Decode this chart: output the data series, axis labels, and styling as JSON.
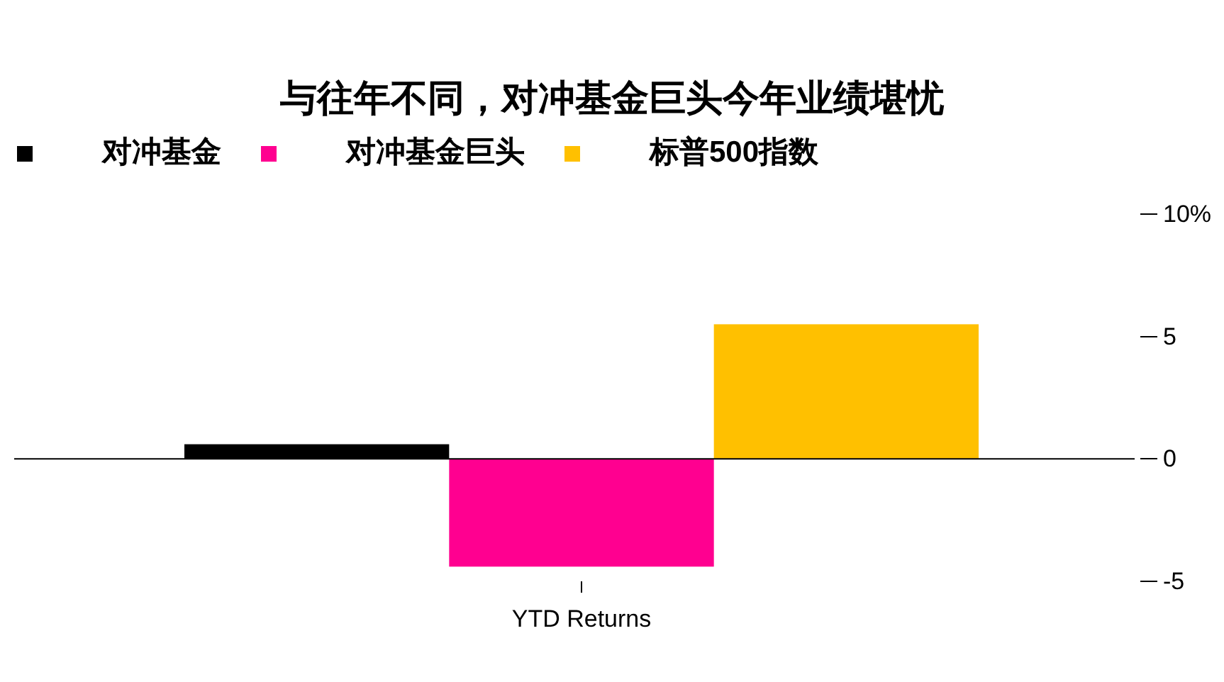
{
  "chart_data": {
    "type": "bar",
    "title": "与往年不同，对冲基金巨头今年业绩堪忧",
    "categories": [
      "YTD Returns"
    ],
    "series": [
      {
        "name": "对冲基金",
        "color": "#000000",
        "values": [
          0.6
        ]
      },
      {
        "name": "对冲基金巨头",
        "color": "#ff0090",
        "values": [
          -4.4
        ]
      },
      {
        "name": "标普500指数",
        "color": "#ffc000",
        "values": [
          5.5
        ]
      }
    ],
    "ylim": [
      -5,
      10
    ],
    "yticks": [
      {
        "value": 10,
        "label": "10%"
      },
      5,
      0,
      -5
    ],
    "legend": "top left"
  }
}
